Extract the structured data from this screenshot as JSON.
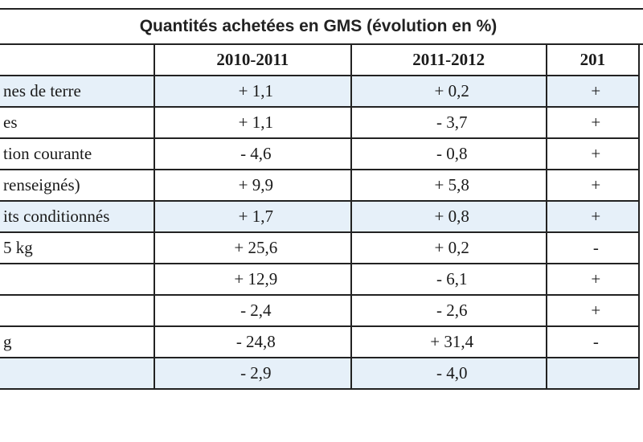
{
  "title": "Quantités achetées en GMS (évolution en %)",
  "headers": [
    "",
    "2010-2011",
    "2011-2012",
    "201"
  ],
  "rows": [
    {
      "label": "nes de terre",
      "values": [
        "+ 1,1",
        "+ 0,2",
        "+"
      ],
      "shaded": true
    },
    {
      "label": "es",
      "values": [
        "+ 1,1",
        "- 3,7",
        "+"
      ],
      "shaded": false
    },
    {
      "label": "tion courante",
      "values": [
        "- 4,6",
        "- 0,8",
        "+"
      ],
      "shaded": false
    },
    {
      "label": "renseignés)",
      "values": [
        "+ 9,9",
        "+ 5,8",
        "+"
      ],
      "shaded": false
    },
    {
      "label": "its conditionnés",
      "values": [
        "+ 1,7",
        "+ 0,8",
        "+"
      ],
      "shaded": true
    },
    {
      "label": "5 kg",
      "values": [
        "+ 25,6",
        "+ 0,2",
        "-"
      ],
      "shaded": false
    },
    {
      "label": "",
      "values": [
        "+ 12,9",
        "- 6,1",
        "+"
      ],
      "shaded": false
    },
    {
      "label": "",
      "values": [
        "- 2,4",
        "- 2,6",
        "+"
      ],
      "shaded": false
    },
    {
      "label": "g",
      "values": [
        "- 24,8",
        "+ 31,4",
        "-"
      ],
      "shaded": false
    },
    {
      "label": "",
      "values": [
        "- 2,9",
        "- 4,0",
        ""
      ],
      "shaded": true
    }
  ]
}
